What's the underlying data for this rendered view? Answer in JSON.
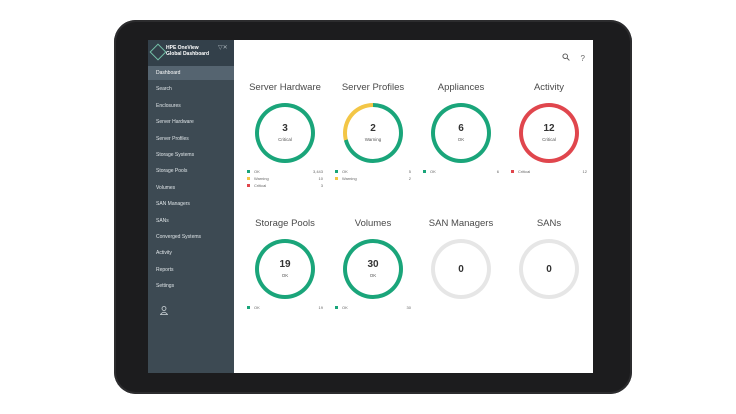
{
  "app": {
    "name_line1": "HPE OneView",
    "name_line2": "Global Dashboard",
    "filter_icon": "filter-icon",
    "close_icon": "close-icon"
  },
  "header": {
    "search_icon": "search-icon",
    "help_label": "?"
  },
  "sidebar": {
    "items": [
      {
        "label": "Dashboard",
        "active": true
      },
      {
        "label": "Search"
      },
      {
        "label": "Enclosures"
      },
      {
        "label": "Server Hardware"
      },
      {
        "label": "Server Profiles"
      },
      {
        "label": "Storage Systems"
      },
      {
        "label": "Storage Pools"
      },
      {
        "label": "Volumes"
      },
      {
        "label": "SAN Managers"
      },
      {
        "label": "SANs"
      },
      {
        "label": "Converged Systems"
      },
      {
        "label": "Activity"
      },
      {
        "label": "Reports"
      },
      {
        "label": "Settings"
      }
    ],
    "user_icon": "user-icon"
  },
  "colors": {
    "ok": "#1aa57a",
    "warning": "#f3c646",
    "critical": "#e0464d",
    "empty": "#e6e6e6"
  },
  "tiles": [
    {
      "title": "Server Hardware",
      "count": "3",
      "status": "Critical",
      "ring": [
        {
          "color": "#1aa57a",
          "fraction": 1.0
        }
      ],
      "legend": [
        {
          "label": "OK",
          "value": "3,443",
          "color": "#1aa57a"
        },
        {
          "label": "Warning",
          "value": "10",
          "color": "#f3c646"
        },
        {
          "label": "Critical",
          "value": "3",
          "color": "#e0464d"
        }
      ]
    },
    {
      "title": "Server Profiles",
      "count": "2",
      "status": "Warning",
      "ring": [
        {
          "color": "#1aa57a",
          "fraction": 0.71
        },
        {
          "color": "#f3c646",
          "fraction": 0.29
        }
      ],
      "legend": [
        {
          "label": "OK",
          "value": "5",
          "color": "#1aa57a"
        },
        {
          "label": "Warning",
          "value": "2",
          "color": "#f3c646"
        }
      ]
    },
    {
      "title": "Appliances",
      "count": "6",
      "status": "OK",
      "ring": [
        {
          "color": "#1aa57a",
          "fraction": 1.0
        }
      ],
      "legend": [
        {
          "label": "OK",
          "value": "6",
          "color": "#1aa57a"
        }
      ]
    },
    {
      "title": "Activity",
      "count": "12",
      "status": "Critical",
      "ring": [
        {
          "color": "#e0464d",
          "fraction": 1.0
        }
      ],
      "legend": [
        {
          "label": "Critical",
          "value": "12",
          "color": "#e0464d"
        }
      ]
    },
    {
      "title": "Storage Pools",
      "count": "19",
      "status": "OK",
      "ring": [
        {
          "color": "#1aa57a",
          "fraction": 1.0
        }
      ],
      "legend": [
        {
          "label": "OK",
          "value": "19",
          "color": "#1aa57a"
        }
      ]
    },
    {
      "title": "Volumes",
      "count": "30",
      "status": "OK",
      "ring": [
        {
          "color": "#1aa57a",
          "fraction": 1.0
        }
      ],
      "legend": [
        {
          "label": "OK",
          "value": "30",
          "color": "#1aa57a"
        }
      ]
    },
    {
      "title": "SAN Managers",
      "count": "0",
      "status": "",
      "ring": [
        {
          "color": "#e6e6e6",
          "fraction": 1.0
        }
      ],
      "legend": []
    },
    {
      "title": "SANs",
      "count": "0",
      "status": "",
      "ring": [
        {
          "color": "#e6e6e6",
          "fraction": 1.0
        }
      ],
      "legend": []
    }
  ]
}
